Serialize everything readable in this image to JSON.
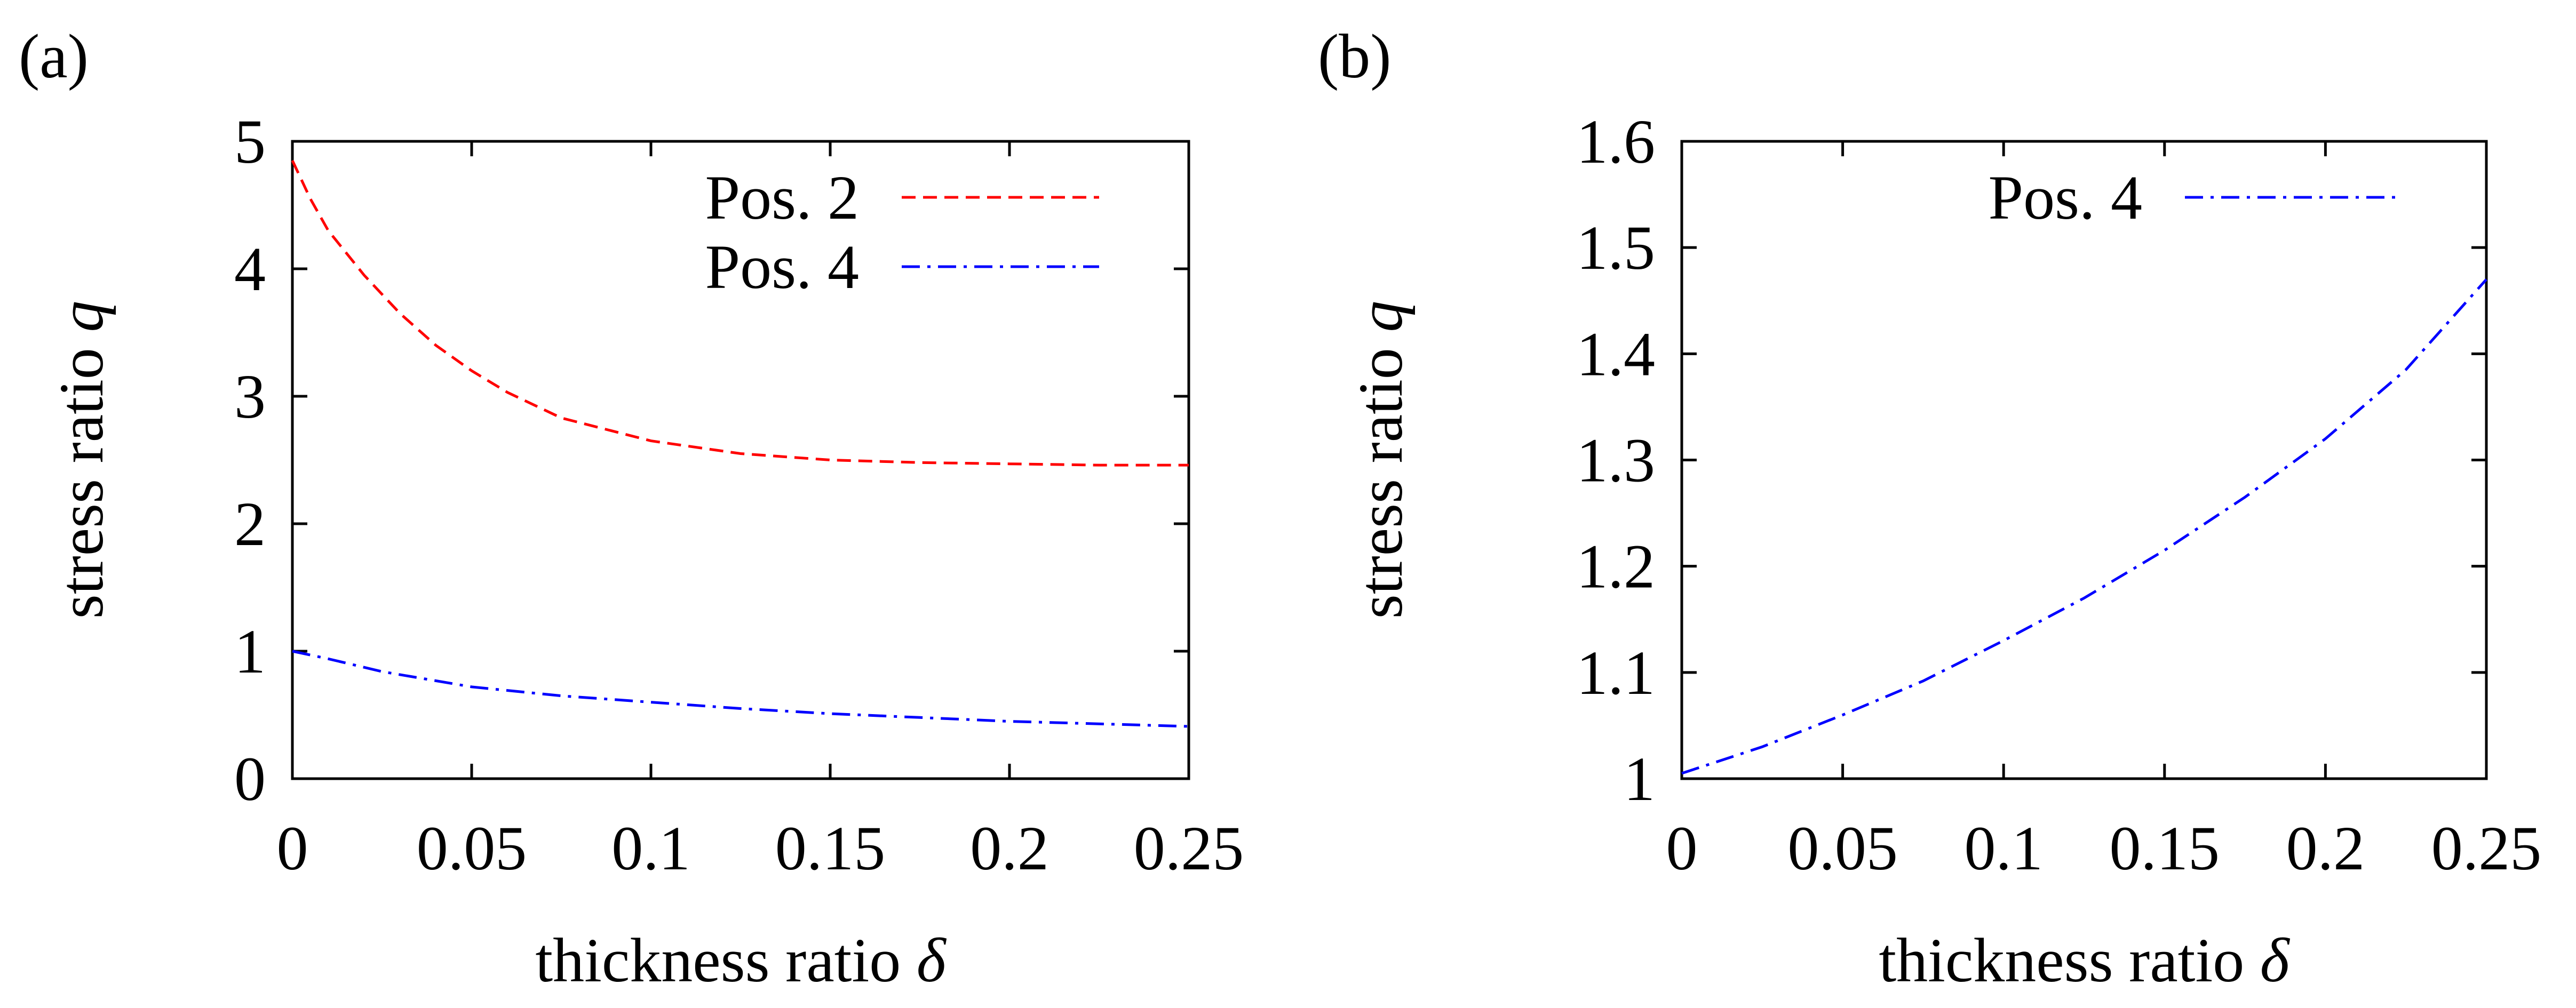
{
  "chart_data": [
    {
      "panel_label": "(a)",
      "type": "line",
      "xlabel": "thickness ratio",
      "xlabel_symbol": "δ",
      "ylabel": "stress ratio",
      "ylabel_symbol": "q",
      "xlim": [
        0,
        0.25
      ],
      "ylim": [
        0,
        5
      ],
      "xticks": [
        0,
        0.05,
        0.1,
        0.15,
        0.2,
        0.25
      ],
      "xtick_labels": [
        "0",
        "0.05",
        "0.1",
        "0.15",
        "0.2",
        "0.25"
      ],
      "yticks": [
        0,
        1,
        2,
        3,
        4,
        5
      ],
      "ytick_labels": [
        "0",
        "1",
        "2",
        "3",
        "4",
        "5"
      ],
      "grid": false,
      "legend_position": "top-right",
      "series": [
        {
          "name": "Pos. 2",
          "color": "#ff0000",
          "dash": "dashed",
          "x": [
            0,
            0.005,
            0.01,
            0.02,
            0.03,
            0.04,
            0.05,
            0.06,
            0.075,
            0.1,
            0.125,
            0.15,
            0.175,
            0.2,
            0.225,
            0.25
          ],
          "y": [
            4.85,
            4.55,
            4.3,
            3.95,
            3.65,
            3.4,
            3.2,
            3.03,
            2.83,
            2.65,
            2.55,
            2.5,
            2.48,
            2.47,
            2.46,
            2.46
          ]
        },
        {
          "name": "Pos. 4",
          "color": "#0000ff",
          "dash": "dashdot",
          "x": [
            0,
            0.01,
            0.025,
            0.05,
            0.075,
            0.1,
            0.125,
            0.15,
            0.175,
            0.2,
            0.225,
            0.25
          ],
          "y": [
            1.0,
            0.94,
            0.84,
            0.72,
            0.65,
            0.6,
            0.55,
            0.51,
            0.48,
            0.45,
            0.43,
            0.41
          ]
        }
      ]
    },
    {
      "panel_label": "(b)",
      "type": "line",
      "xlabel": "thickness ratio",
      "xlabel_symbol": "δ",
      "ylabel": "stress ratio",
      "ylabel_symbol": "q",
      "xlim": [
        0,
        0.25
      ],
      "ylim": [
        1,
        1.6
      ],
      "xticks": [
        0,
        0.05,
        0.1,
        0.15,
        0.2,
        0.25
      ],
      "xtick_labels": [
        "0",
        "0.05",
        "0.1",
        "0.15",
        "0.2",
        "0.25"
      ],
      "yticks": [
        1,
        1.1,
        1.2,
        1.3,
        1.4,
        1.5,
        1.6
      ],
      "ytick_labels": [
        "1",
        "1.1",
        "1.2",
        "1.3",
        "1.4",
        "1.5",
        "1.6"
      ],
      "grid": false,
      "legend_position": "top-right",
      "series": [
        {
          "name": "Pos. 4",
          "color": "#0000ff",
          "dash": "dashdot",
          "x": [
            0,
            0.025,
            0.05,
            0.075,
            0.1,
            0.125,
            0.15,
            0.175,
            0.2,
            0.225,
            0.25
          ],
          "y": [
            1.005,
            1.03,
            1.06,
            1.092,
            1.13,
            1.17,
            1.215,
            1.265,
            1.32,
            1.385,
            1.47
          ]
        }
      ]
    }
  ]
}
